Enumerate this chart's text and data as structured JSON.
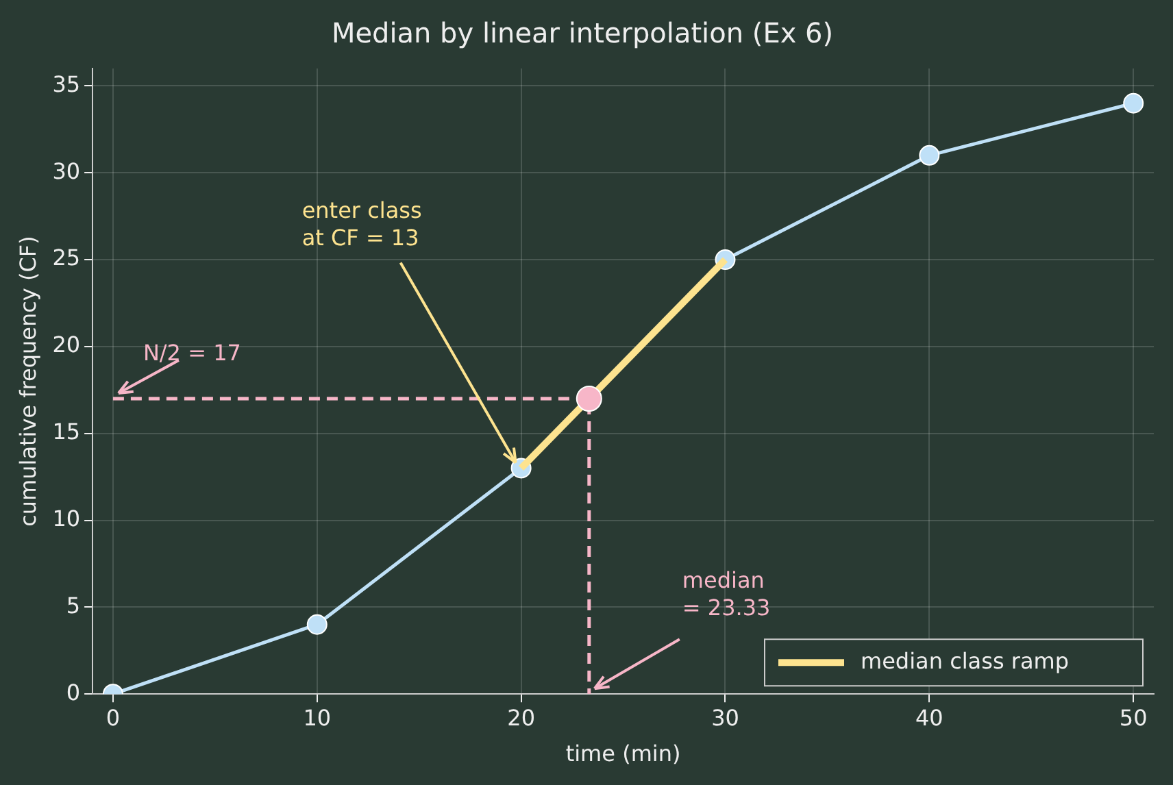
{
  "chart_data": {
    "type": "line",
    "title": "Median by linear interpolation (Ex 6)",
    "xlabel": "time (min)",
    "ylabel": "cumulative frequency (CF)",
    "x": [
      0,
      10,
      20,
      30,
      40,
      50
    ],
    "series": [
      {
        "color": "#bfe0f7",
        "values": [
          0,
          4,
          13,
          25,
          31,
          34
        ],
        "marker": "circle"
      },
      {
        "name": "median class ramp",
        "color": "#fde38f",
        "x": [
          20,
          30
        ],
        "values": [
          13,
          25
        ],
        "marker": "none"
      },
      {
        "color": "#f7b6c8",
        "x": [
          0,
          23.33,
          23.33
        ],
        "values": [
          17,
          17,
          0
        ],
        "marker": "none",
        "line_style": "dashed"
      },
      {
        "type": "scatter",
        "color": "#f7b6c8",
        "x": [
          23.33
        ],
        "values": [
          17
        ],
        "marker": "circle"
      }
    ],
    "annotations": [
      {
        "text": "N/2 = 17",
        "x": 0,
        "y": 17
      },
      {
        "text": "enter class\nat CF = 13",
        "x": 20,
        "y": 13
      },
      {
        "text": "median\n= 23.33",
        "x": 23.33,
        "y": 0
      }
    ],
    "xlim": [
      -1,
      51
    ],
    "ylim": [
      0,
      36
    ],
    "xticks": [
      0,
      10,
      20,
      30,
      40,
      50
    ],
    "yticks": [
      0,
      5,
      10,
      15,
      20,
      25,
      30,
      35
    ],
    "grid": true,
    "legend": "bottom right"
  }
}
